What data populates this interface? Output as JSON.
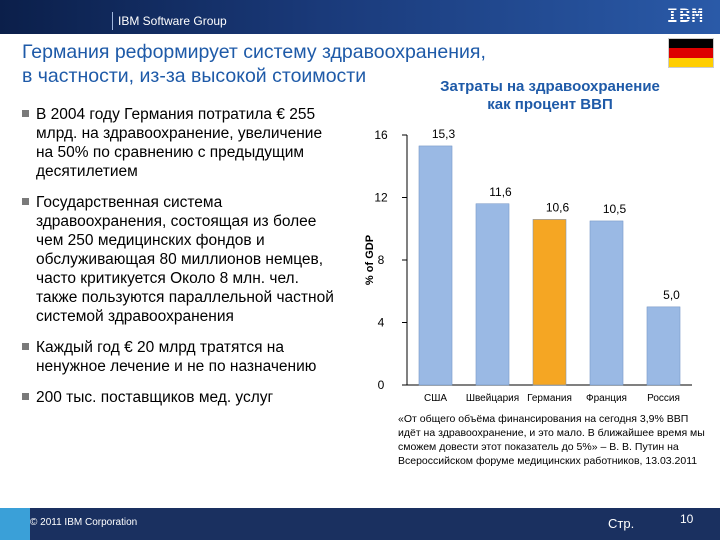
{
  "header": {
    "group": "IBM Software Group",
    "logo": "IBM"
  },
  "flag": {
    "colors": [
      "#000000",
      "#dd0000",
      "#ffce00"
    ]
  },
  "title": {
    "line1": "Германия реформирует систему здравоохранения,",
    "line2": "в частности, из-за высокой стоимости"
  },
  "bullets": [
    "В 2004 году Германия потратила € 255 млрд. на здравоохранение, увеличение на 50% по сравнению с предыдущим десятилетием",
    "Государственная система здравоохранения, состоящая из более чем 250 медицинских фондов и обслуживающая 80 миллионов немцев, часто критикуется Около 8 млн. чел. также пользуются параллельной частной системой здравоохранения",
    "Каждый год € 20 млрд тратятся на ненужное лечение и не по назначению",
    "200 тыс. поставщиков мед. услуг"
  ],
  "chart_data": {
    "type": "bar",
    "title": "Затраты на здравоохранение как процент ВВП",
    "title_lines": [
      "Затраты на здравоохранение",
      "как процент ВВП"
    ],
    "ylabel": "% of GDP",
    "ylim": [
      0,
      16
    ],
    "yticks": [
      0,
      4,
      8,
      12,
      16
    ],
    "categories": [
      "США",
      "Швейцария",
      "Германия",
      "Франция",
      "Россия"
    ],
    "values": [
      15.3,
      11.6,
      10.6,
      10.5,
      5.0
    ],
    "value_labels": [
      "15,3",
      "11,6",
      "10,6",
      "10,5",
      "5,0"
    ],
    "colors": [
      "#9ab9e4",
      "#9ab9e4",
      "#f5a623",
      "#9ab9e4",
      "#9ab9e4"
    ],
    "grid": false
  },
  "quote": "«От общего объёма финансирования на сегодня 3,9% ВВП идёт на здравоохранение, и это мало. В ближайшее время мы сможем довести этот показатель до 5%» – В. В. Путин на Всероссийском форуме медицинских работников, 13.03.2011",
  "footer": {
    "copyright": "© 2011 IBM Corporation",
    "page_label": "Стр.",
    "page_number": "10"
  }
}
